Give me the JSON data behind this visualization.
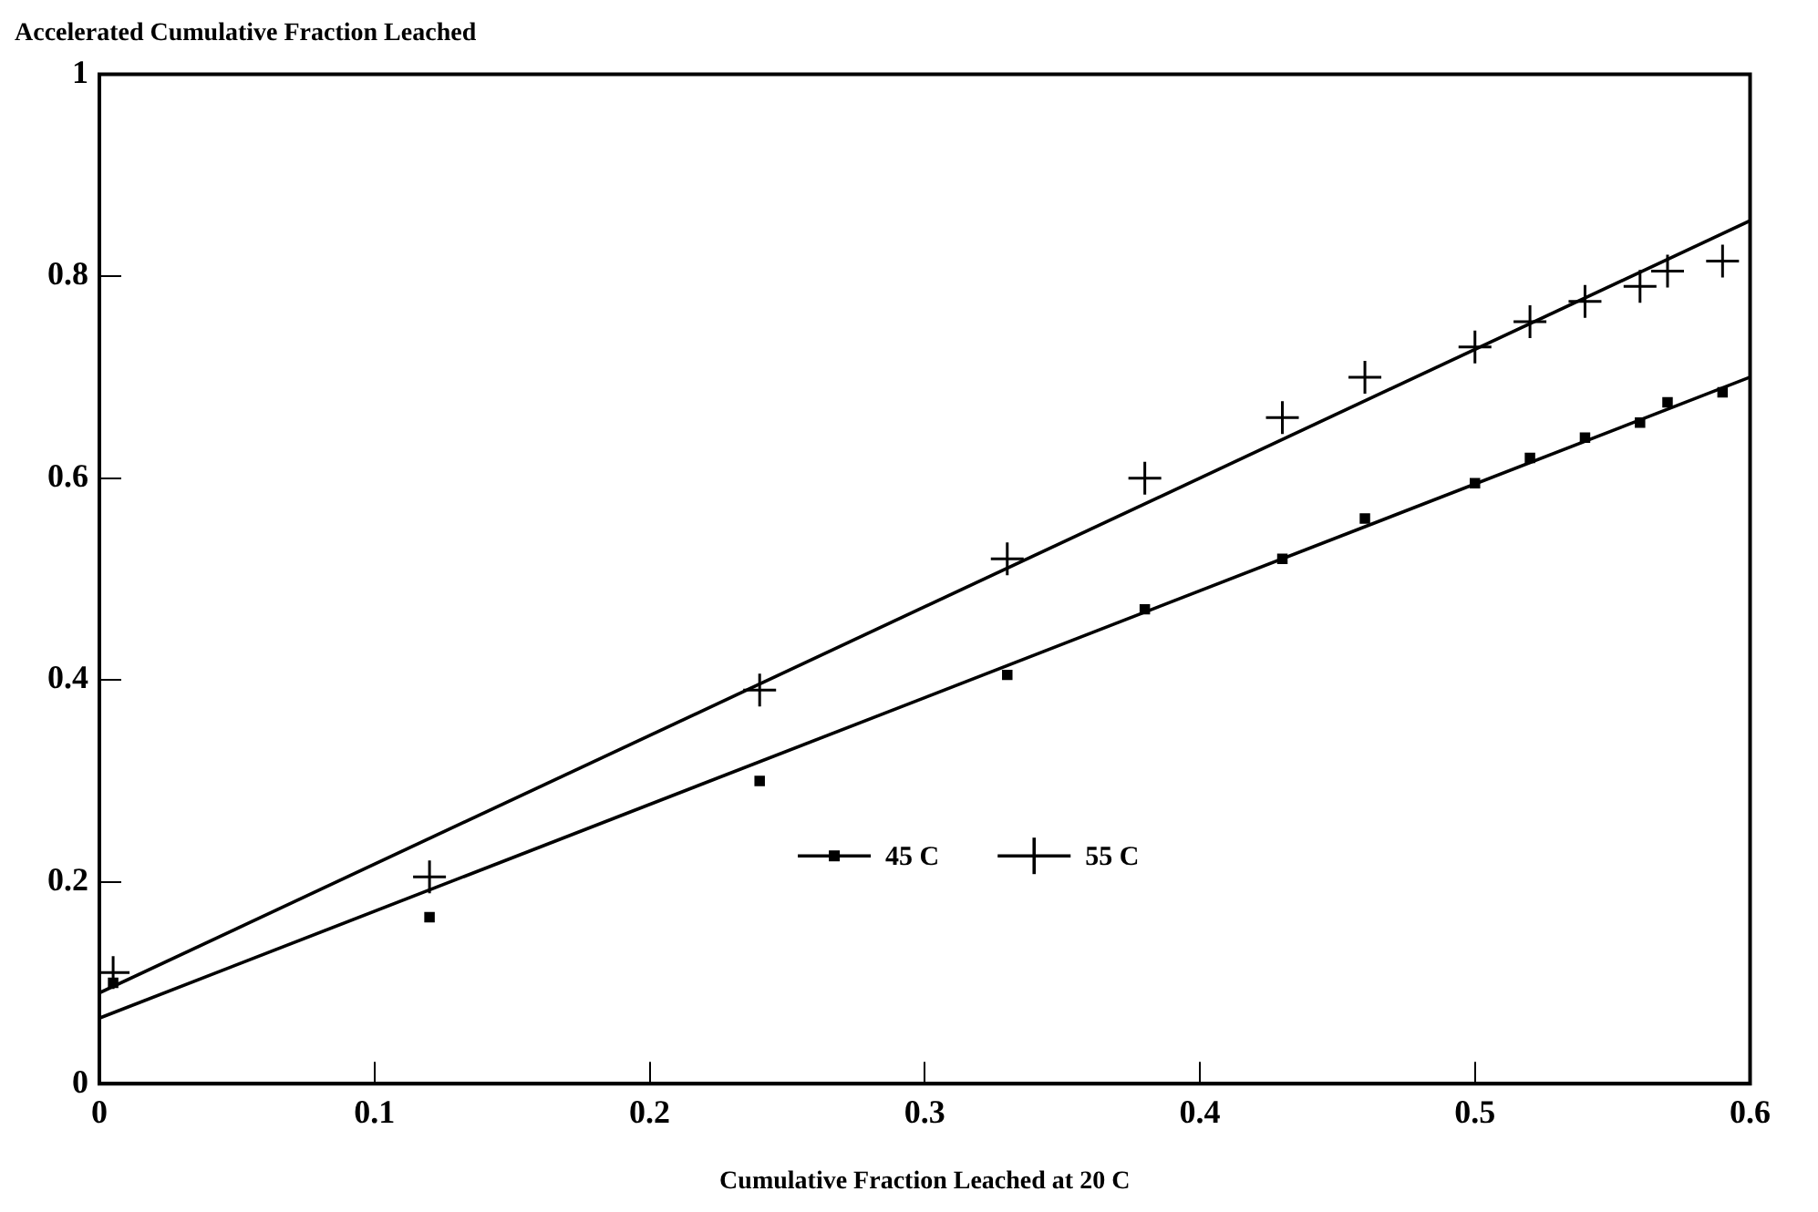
{
  "chart_data": {
    "type": "scatter",
    "title": "Accelerated Cumulative Fraction Leached",
    "xlabel": "Cumulative Fraction Leached at 20 C",
    "xlim": [
      0,
      0.6
    ],
    "xticks": [
      0,
      0.1,
      0.2,
      0.3,
      0.4,
      0.5,
      0.6
    ],
    "ylim": [
      0,
      1
    ],
    "yticks": [
      0,
      0.2,
      0.4,
      0.6,
      0.8,
      1
    ],
    "grid": false,
    "legend": "bottom",
    "series": [
      {
        "name": "45 C",
        "marker": "square",
        "color": "#000000",
        "x": [
          0.005,
          0.12,
          0.24,
          0.33,
          0.38,
          0.43,
          0.46,
          0.5,
          0.52,
          0.54,
          0.56,
          0.57,
          0.59
        ],
        "values": [
          0.1,
          0.165,
          0.3,
          0.405,
          0.47,
          0.52,
          0.56,
          0.595,
          0.62,
          0.64,
          0.655,
          0.675,
          0.685
        ]
      },
      {
        "name": "55 C",
        "marker": "cross",
        "color": "#000000",
        "x": [
          0.005,
          0.12,
          0.24,
          0.33,
          0.38,
          0.43,
          0.46,
          0.5,
          0.52,
          0.54,
          0.56,
          0.57,
          0.59
        ],
        "values": [
          0.11,
          0.205,
          0.39,
          0.52,
          0.6,
          0.66,
          0.7,
          0.73,
          0.755,
          0.775,
          0.79,
          0.805,
          0.815
        ]
      },
      {
        "type": "line",
        "color": "#000000",
        "x": [
          0,
          0.6
        ],
        "values": [
          0.065,
          0.7
        ]
      },
      {
        "type": "line",
        "color": "#000000",
        "x": [
          0,
          0.6
        ],
        "values": [
          0.09,
          0.855
        ]
      }
    ]
  }
}
